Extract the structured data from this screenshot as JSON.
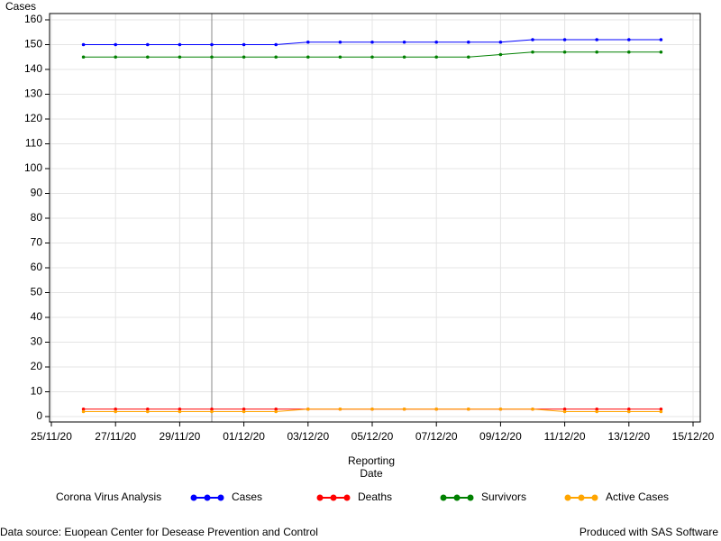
{
  "chart_data": {
    "type": "line",
    "y_label": "Cases",
    "x_label": "Reporting Date",
    "x": [
      "26/11/20",
      "27/11/20",
      "28/11/20",
      "29/11/20",
      "30/11/20",
      "01/12/20",
      "02/12/20",
      "03/12/20",
      "04/12/20",
      "05/12/20",
      "06/12/20",
      "07/12/20",
      "08/12/20",
      "09/12/20",
      "10/12/20",
      "11/12/20",
      "12/12/20",
      "13/12/20",
      "14/12/20"
    ],
    "xlim": [
      "25/11/20",
      "15/12/20"
    ],
    "xticks": [
      "25/11/20",
      "27/11/20",
      "29/11/20",
      "01/12/20",
      "03/12/20",
      "05/12/20",
      "07/12/20",
      "09/12/20",
      "11/12/20",
      "13/12/20",
      "15/12/20"
    ],
    "ylim": [
      0,
      160
    ],
    "yticks": [
      0,
      10,
      20,
      30,
      40,
      50,
      60,
      70,
      80,
      90,
      100,
      110,
      120,
      130,
      140,
      150,
      160
    ],
    "grid": true,
    "reference_line_x": "30/11/20",
    "legend_title": "Corona Virus Analysis",
    "legend_position": "bottom",
    "series": [
      {
        "name": "Cases",
        "color": "#0000ff",
        "values": [
          150,
          150,
          150,
          150,
          150,
          150,
          150,
          151,
          151,
          151,
          151,
          151,
          151,
          151,
          152,
          152,
          152,
          152,
          152
        ]
      },
      {
        "name": "Deaths",
        "color": "#ff0000",
        "values": [
          3,
          3,
          3,
          3,
          3,
          3,
          3,
          3,
          3,
          3,
          3,
          3,
          3,
          3,
          3,
          3,
          3,
          3,
          3
        ]
      },
      {
        "name": "Survivors",
        "color": "#008000",
        "values": [
          145,
          145,
          145,
          145,
          145,
          145,
          145,
          145,
          145,
          145,
          145,
          145,
          145,
          146,
          147,
          147,
          147,
          147,
          147
        ]
      },
      {
        "name": "Active Cases",
        "color": "#ffa500",
        "values": [
          2,
          2,
          2,
          2,
          2,
          2,
          2,
          3,
          3,
          3,
          3,
          3,
          3,
          3,
          3,
          2,
          2,
          2,
          2
        ]
      }
    ],
    "footnote_left": "Data source: Euopean Center for Desease Prevention and Control",
    "footnote_right": "Produced with SAS Software"
  }
}
